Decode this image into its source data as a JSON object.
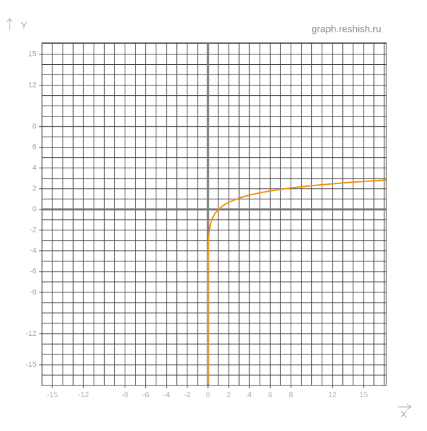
{
  "chart_data": {
    "type": "line",
    "watermark": "graph.reshish.ru",
    "x_label": "X",
    "y_label": "Y",
    "xlim": [
      -16,
      17.2
    ],
    "ylim": [
      -17,
      16.1
    ],
    "xticks": [
      -15,
      -12,
      -8,
      -6,
      -4,
      -2,
      0,
      2,
      4,
      6,
      8,
      12,
      15
    ],
    "yticks": [
      15,
      12,
      8,
      6,
      4,
      2,
      0,
      -2,
      -4,
      -6,
      -8,
      -12,
      -15
    ],
    "grid": true,
    "series": [
      {
        "color": "#f0900f",
        "x": [
          5e-08,
          1e-06,
          1e-05,
          0.0001,
          0.001,
          0.01,
          0.05,
          0.1,
          0.2,
          0.3,
          0.5,
          0.75,
          1,
          1.5,
          2,
          3,
          4,
          5,
          6,
          8,
          10,
          12,
          14,
          17.2
        ],
        "values": [
          -16.81,
          -13.82,
          -11.51,
          -9.21,
          -6.91,
          -4.61,
          -3.0,
          -2.3,
          -1.61,
          -1.2,
          -0.69,
          -0.29,
          0,
          0.41,
          0.69,
          1.1,
          1.39,
          1.61,
          1.79,
          2.08,
          2.3,
          2.48,
          2.64,
          2.84
        ]
      }
    ]
  }
}
